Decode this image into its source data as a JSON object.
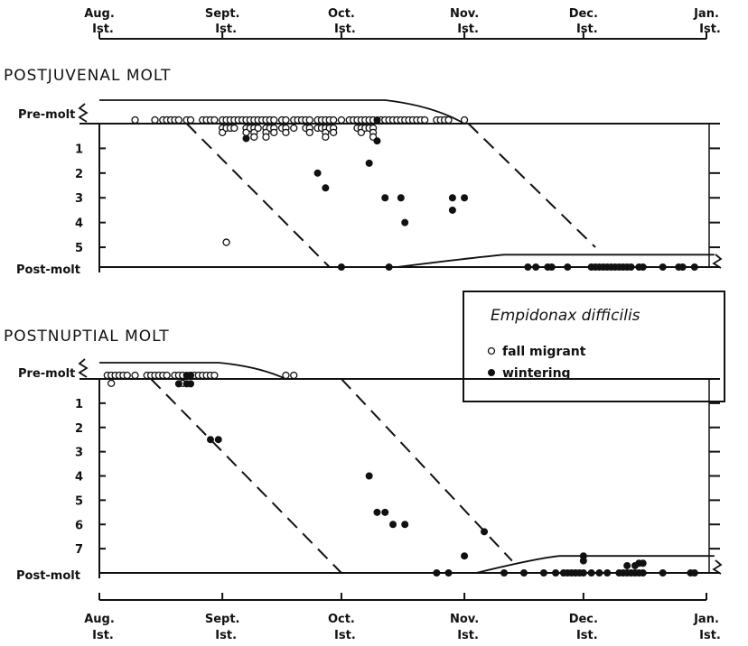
{
  "chart_data": [
    {
      "type": "scatter",
      "panel": "top",
      "title": "POSTJUVENAL  MOLT",
      "x_axis": {
        "ticks": [
          {
            "month": "Aug.",
            "day": "Ist.",
            "value": 0
          },
          {
            "month": "Sept.",
            "day": "Ist.",
            "value": 31
          },
          {
            "month": "Oct.",
            "day": "Ist.",
            "value": 61
          },
          {
            "month": "Nov.",
            "day": "Ist.",
            "value": 92
          },
          {
            "month": "Dec.",
            "day": "Ist.",
            "value": 122
          },
          {
            "month": "Jan.",
            "day": "Ist.",
            "value": 153
          }
        ],
        "range": [
          0,
          153
        ]
      },
      "y_axis": {
        "top_label": "Pre-molt",
        "bottom_label": "Post-molt",
        "ticks": [
          "1",
          "2",
          "3",
          "4",
          "5"
        ],
        "range": [
          0,
          5.8
        ],
        "inverted": true
      },
      "series": [
        {
          "name": "fall migrant",
          "marker": "open",
          "points": [
            [
              9,
              0
            ],
            [
              14,
              0
            ],
            [
              16,
              0
            ],
            [
              17,
              0
            ],
            [
              18,
              0
            ],
            [
              19,
              0
            ],
            [
              20,
              0
            ],
            [
              22,
              0
            ],
            [
              23,
              0
            ],
            [
              26,
              0
            ],
            [
              27,
              0
            ],
            [
              28,
              0
            ],
            [
              29,
              0
            ],
            [
              31,
              0
            ],
            [
              31,
              0.18
            ],
            [
              31,
              0.36
            ],
            [
              32,
              0
            ],
            [
              32,
              0.18
            ],
            [
              33,
              0
            ],
            [
              33,
              0.18
            ],
            [
              34,
              0
            ],
            [
              34,
              0.18
            ],
            [
              35,
              0
            ],
            [
              36,
              0
            ],
            [
              37,
              0
            ],
            [
              37,
              0.18
            ],
            [
              37,
              0.36
            ],
            [
              38,
              0
            ],
            [
              38,
              0.18
            ],
            [
              39,
              0
            ],
            [
              39,
              0.18
            ],
            [
              39,
              0.36
            ],
            [
              39,
              0.54
            ],
            [
              40,
              0
            ],
            [
              40,
              0.18
            ],
            [
              41,
              0
            ],
            [
              42,
              0
            ],
            [
              42,
              0.18
            ],
            [
              42,
              0.36
            ],
            [
              42,
              0.54
            ],
            [
              43,
              0
            ],
            [
              43,
              0.18
            ],
            [
              44,
              0
            ],
            [
              44,
              0.18
            ],
            [
              44,
              0.36
            ],
            [
              46,
              0
            ],
            [
              46,
              0.18
            ],
            [
              47,
              0
            ],
            [
              47,
              0.18
            ],
            [
              47,
              0.36
            ],
            [
              49,
              0
            ],
            [
              49,
              0.18
            ],
            [
              50,
              0
            ],
            [
              51,
              0
            ],
            [
              52,
              0
            ],
            [
              52,
              0.18
            ],
            [
              53,
              0
            ],
            [
              53,
              0.18
            ],
            [
              53,
              0.36
            ],
            [
              55,
              0
            ],
            [
              55,
              0.18
            ],
            [
              56,
              0
            ],
            [
              56,
              0.18
            ],
            [
              57,
              0
            ],
            [
              57,
              0.18
            ],
            [
              57,
              0.36
            ],
            [
              57,
              0.54
            ],
            [
              58,
              0
            ],
            [
              58,
              0.18
            ],
            [
              59,
              0
            ],
            [
              59,
              0.18
            ],
            [
              59,
              0.36
            ],
            [
              61,
              0
            ],
            [
              63,
              0
            ],
            [
              64,
              0
            ],
            [
              65,
              0
            ],
            [
              65,
              0.18
            ],
            [
              66,
              0
            ],
            [
              66,
              0.18
            ],
            [
              66,
              0.36
            ],
            [
              67,
              0
            ],
            [
              67,
              0.18
            ],
            [
              68,
              0
            ],
            [
              68,
              0.18
            ],
            [
              69,
              0
            ],
            [
              69,
              0.18
            ],
            [
              69,
              0.36
            ],
            [
              69,
              0.54
            ],
            [
              71,
              0
            ],
            [
              72,
              0
            ],
            [
              73,
              0
            ],
            [
              74,
              0
            ],
            [
              75,
              0
            ],
            [
              76,
              0
            ],
            [
              77,
              0
            ],
            [
              78,
              0
            ],
            [
              79,
              0
            ],
            [
              80,
              0
            ],
            [
              81,
              0
            ],
            [
              82,
              0
            ],
            [
              85,
              0
            ],
            [
              86,
              0
            ],
            [
              87,
              0
            ],
            [
              88,
              0
            ],
            [
              92,
              0
            ],
            [
              32,
              4.8
            ]
          ]
        },
        {
          "name": "wintering",
          "marker": "filled",
          "points": [
            [
              37,
              0.6
            ],
            [
              70,
              0.0
            ],
            [
              55,
              2.0
            ],
            [
              57,
              2.6
            ],
            [
              68,
              1.6
            ],
            [
              70,
              0.7
            ],
            [
              72,
              3.0
            ],
            [
              76,
              3.0
            ],
            [
              77,
              4.0
            ],
            [
              89,
              3.0
            ],
            [
              89,
              3.5
            ],
            [
              92,
              3.0
            ],
            [
              61,
              5.8
            ],
            [
              73,
              5.8
            ],
            [
              108,
              5.8
            ],
            [
              110,
              5.8
            ],
            [
              113,
              5.8
            ],
            [
              114,
              5.8
            ],
            [
              118,
              5.8
            ],
            [
              124,
              5.8
            ],
            [
              125,
              5.8
            ],
            [
              126,
              5.8
            ],
            [
              127,
              5.8
            ],
            [
              128,
              5.8
            ],
            [
              129,
              5.8
            ],
            [
              130,
              5.8
            ],
            [
              131,
              5.8
            ],
            [
              132,
              5.8
            ],
            [
              133,
              5.8
            ],
            [
              134,
              5.8
            ],
            [
              136,
              5.8
            ],
            [
              137,
              5.8
            ],
            [
              142,
              5.8
            ],
            [
              146,
              5.8
            ],
            [
              147,
              5.8
            ],
            [
              150,
              5.8
            ]
          ]
        }
      ]
    },
    {
      "type": "scatter",
      "panel": "bottom",
      "title": "POSTNUPTIAL   MOLT",
      "x_axis": {
        "ticks": [
          {
            "month": "Aug.",
            "day": "Ist.",
            "value": 0
          },
          {
            "month": "Sept.",
            "day": "Ist.",
            "value": 31
          },
          {
            "month": "Oct.",
            "day": "Ist.",
            "value": 61
          },
          {
            "month": "Nov.",
            "day": "Ist.",
            "value": 92
          },
          {
            "month": "Dec.",
            "day": "Ist.",
            "value": 122
          },
          {
            "month": "Jan.",
            "day": "Ist.",
            "value": 153
          }
        ],
        "range": [
          0,
          153
        ]
      },
      "y_axis": {
        "top_label": "Pre-molt",
        "bottom_label": "Post-molt",
        "ticks": [
          "1",
          "2",
          "3",
          "4",
          "5",
          "6",
          "7"
        ],
        "range": [
          0,
          8
        ],
        "inverted": true
      },
      "series": [
        {
          "name": "fall migrant",
          "marker": "open",
          "points": [
            [
              2,
              0
            ],
            [
              3,
              0
            ],
            [
              3,
              0.18
            ],
            [
              4,
              0
            ],
            [
              5,
              0
            ],
            [
              6,
              0
            ],
            [
              7,
              0
            ],
            [
              9,
              0
            ],
            [
              12,
              0
            ],
            [
              13,
              0
            ],
            [
              14,
              0
            ],
            [
              15,
              0
            ],
            [
              16,
              0
            ],
            [
              17,
              0
            ],
            [
              19,
              0
            ],
            [
              20,
              0
            ],
            [
              21,
              0
            ],
            [
              21,
              0.18
            ],
            [
              23,
              0
            ],
            [
              24,
              0
            ],
            [
              25,
              0
            ],
            [
              26,
              0
            ],
            [
              27,
              0
            ],
            [
              28,
              0
            ],
            [
              29,
              0
            ],
            [
              47,
              0
            ],
            [
              49,
              0
            ]
          ]
        },
        {
          "name": "wintering",
          "marker": "filled",
          "points": [
            [
              20,
              0.2
            ],
            [
              22,
              0
            ],
            [
              22,
              0.2
            ],
            [
              23,
              0
            ],
            [
              23,
              0.2
            ],
            [
              28,
              2.5
            ],
            [
              30,
              2.5
            ],
            [
              68,
              4.0
            ],
            [
              70,
              5.5
            ],
            [
              72,
              5.5
            ],
            [
              74,
              6.0
            ],
            [
              77,
              6.0
            ],
            [
              92,
              7.3
            ],
            [
              97,
              6.3
            ],
            [
              85,
              8
            ],
            [
              88,
              8
            ],
            [
              102,
              8
            ],
            [
              107,
              8
            ],
            [
              112,
              8
            ],
            [
              115,
              8
            ],
            [
              117,
              8
            ],
            [
              118,
              8
            ],
            [
              119,
              8
            ],
            [
              120,
              8
            ],
            [
              121,
              8
            ],
            [
              122,
              8
            ],
            [
              122,
              7.5
            ],
            [
              122,
              7.3
            ],
            [
              124,
              8
            ],
            [
              126,
              8
            ],
            [
              128,
              8
            ],
            [
              131,
              8
            ],
            [
              132,
              8
            ],
            [
              133,
              8
            ],
            [
              133,
              7.7
            ],
            [
              134,
              8
            ],
            [
              135,
              8
            ],
            [
              135,
              7.7
            ],
            [
              136,
              8
            ],
            [
              136,
              7.6
            ],
            [
              137,
              8
            ],
            [
              137,
              7.6
            ],
            [
              142,
              8
            ],
            [
              149,
              8
            ],
            [
              150,
              8
            ]
          ]
        }
      ]
    }
  ],
  "legend": {
    "title": "Empidonax  difficilis",
    "entries": [
      {
        "label": "fall  migrant",
        "marker": "open"
      },
      {
        "label": "wintering",
        "marker": "filled"
      }
    ]
  }
}
